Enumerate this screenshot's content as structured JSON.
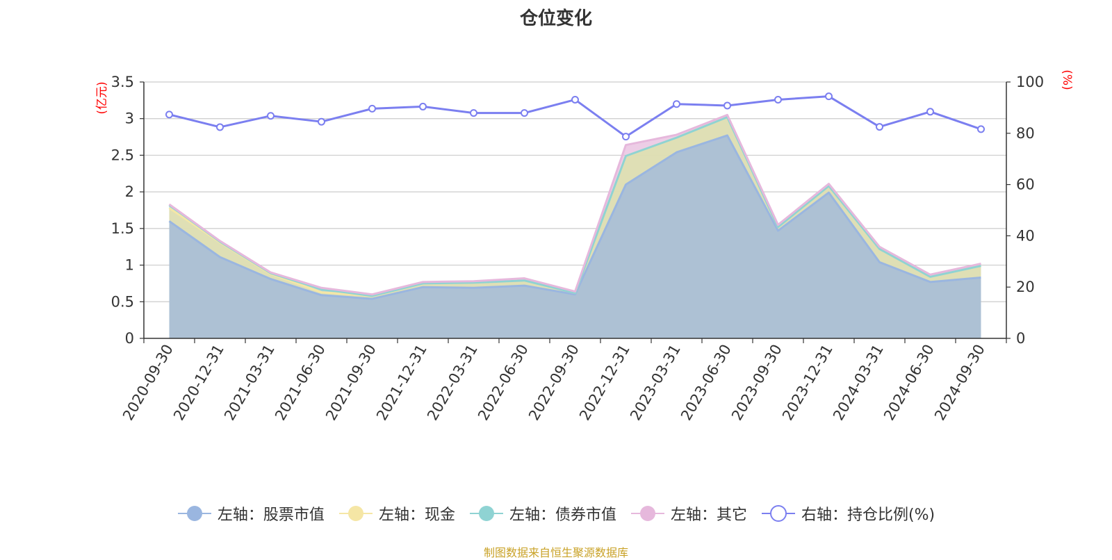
{
  "title": "仓位变化",
  "source_note": "制图数据来自恒生聚源数据库",
  "colors": {
    "stock": "#9ab6e0",
    "cash": "#f5e6a5",
    "bond": "#8fd3d3",
    "other": "#e6b8dc",
    "ratio": "#7b7ff0",
    "axis_unit": "#ff0000"
  },
  "chart_data": {
    "type": "area",
    "x": [
      "2020-09-30",
      "2020-12-31",
      "2021-03-31",
      "2021-06-30",
      "2021-09-30",
      "2021-12-31",
      "2022-03-31",
      "2022-06-30",
      "2022-09-30",
      "2022-12-31",
      "2023-03-31",
      "2023-06-30",
      "2023-09-30",
      "2023-12-31",
      "2024-03-31",
      "2024-06-30",
      "2024-09-30"
    ],
    "left_axis": {
      "unit": "(亿元)",
      "min": 0,
      "max": 3.5,
      "ticks": [
        "0",
        "0.5",
        "1",
        "1.5",
        "2",
        "2.5",
        "3",
        "3.5"
      ]
    },
    "right_axis": {
      "unit": "(%)",
      "min": 0,
      "max": 100,
      "ticks": [
        "0",
        "20",
        "40",
        "60",
        "80",
        "100"
      ]
    },
    "series": [
      {
        "name": "左轴：股票市值",
        "axis": "left",
        "stacked": true,
        "values": [
          1.6,
          1.11,
          0.81,
          0.59,
          0.54,
          0.7,
          0.69,
          0.72,
          0.6,
          2.1,
          2.54,
          2.77,
          1.47,
          1.99,
          1.04,
          0.77,
          0.83
        ]
      },
      {
        "name": "左轴：现金",
        "axis": "left",
        "stacked": true,
        "values": [
          0.18,
          0.2,
          0.07,
          0.04,
          0.04,
          0.05,
          0.07,
          0.07,
          0.02,
          0.39,
          0.2,
          0.25,
          0.05,
          0.09,
          0.18,
          0.07,
          0.16
        ]
      },
      {
        "name": "左轴：债券市值",
        "axis": "left",
        "stacked": true,
        "values": [
          0.04,
          0.01,
          0.01,
          0.04,
          0.0,
          0.0,
          0.0,
          0.0,
          0.0,
          0.0,
          0.0,
          0.0,
          0.0,
          0.0,
          0.0,
          0.0,
          0.0
        ]
      },
      {
        "name": "左轴：其它",
        "axis": "left",
        "stacked": true,
        "values": [
          0.01,
          0.01,
          0.01,
          0.02,
          0.02,
          0.02,
          0.02,
          0.03,
          0.02,
          0.15,
          0.04,
          0.03,
          0.03,
          0.03,
          0.03,
          0.03,
          0.03
        ]
      },
      {
        "name": "右轴：持仓比例(%)",
        "axis": "right",
        "stacked": false,
        "values": [
          87.3,
          82.4,
          86.8,
          84.5,
          89.6,
          90.4,
          87.9,
          87.9,
          93.1,
          78.7,
          91.4,
          90.8,
          93.1,
          94.4,
          82.5,
          88.4,
          81.6
        ]
      }
    ],
    "grid": true,
    "legend": "bottom"
  }
}
